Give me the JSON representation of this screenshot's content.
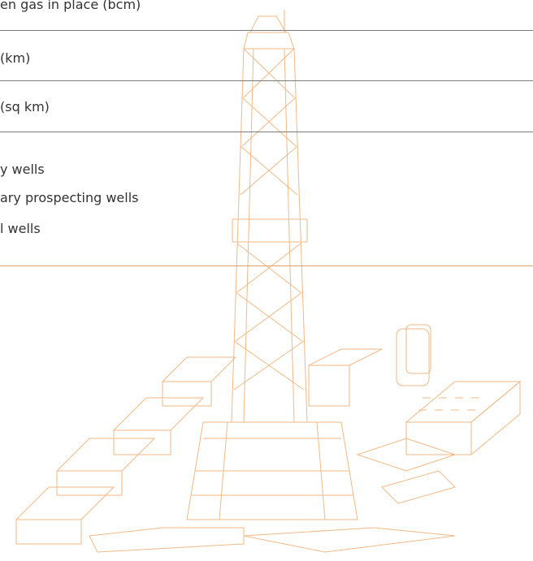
{
  "rows": {
    "row1": "en gas in place (bcm)",
    "row2": "(km)",
    "row3": "(sq km)",
    "row4": "y wells",
    "row5": "ary prospecting wells",
    "row6": "l wells"
  },
  "illustration": {
    "name": "drilling-rig-illustration",
    "stroke_color": "#f0b27a"
  }
}
